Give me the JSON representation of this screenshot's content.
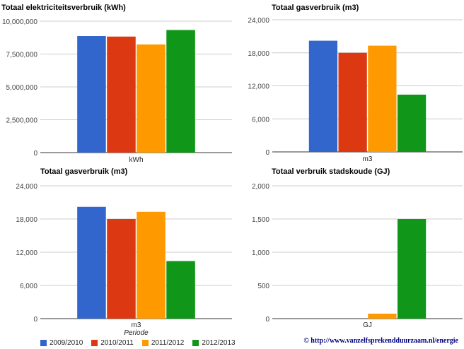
{
  "chart_data": [
    {
      "type": "bar",
      "title": "Totaal elektriciteitsverbruik (kWh)",
      "categories": [
        "kWh"
      ],
      "series": [
        {
          "name": "2009/2010",
          "values": [
            8870000
          ]
        },
        {
          "name": "2010/2011",
          "values": [
            8830000
          ]
        },
        {
          "name": "2011/2012",
          "values": [
            8230000
          ]
        },
        {
          "name": "2012/2013",
          "values": [
            9330000
          ]
        }
      ],
      "yticks": [
        "0",
        "2,500,000",
        "5,000,000",
        "7,500,000",
        "10,000,000"
      ],
      "ylim": [
        0,
        10000000
      ],
      "grid": true
    },
    {
      "type": "bar",
      "title": "Totaal gasverbruik (m3)",
      "categories": [
        "m3"
      ],
      "series": [
        {
          "name": "2009/2010",
          "values": [
            20200
          ]
        },
        {
          "name": "2010/2011",
          "values": [
            18000
          ]
        },
        {
          "name": "2011/2012",
          "values": [
            19300
          ]
        },
        {
          "name": "2012/2013",
          "values": [
            10400
          ]
        }
      ],
      "yticks": [
        "0",
        "6,000",
        "12,000",
        "18,000",
        "24,000"
      ],
      "ylim": [
        0,
        24000
      ],
      "grid": true
    },
    {
      "type": "bar",
      "title": "Totaal gasverbruik (m3)",
      "categories": [
        "m3"
      ],
      "xlabel": "Periode",
      "series": [
        {
          "name": "2009/2010",
          "values": [
            20200
          ]
        },
        {
          "name": "2010/2011",
          "values": [
            18000
          ]
        },
        {
          "name": "2011/2012",
          "values": [
            19300
          ]
        },
        {
          "name": "2012/2013",
          "values": [
            10400
          ]
        }
      ],
      "yticks": [
        "0",
        "6,000",
        "12,000",
        "18,000",
        "24,000"
      ],
      "ylim": [
        0,
        24000
      ],
      "grid": true
    },
    {
      "type": "bar",
      "title": "Totaal verbruik stadskoude (GJ)",
      "categories": [
        "GJ"
      ],
      "series": [
        {
          "name": "2009/2010",
          "values": [
            0
          ]
        },
        {
          "name": "2010/2011",
          "values": [
            0
          ]
        },
        {
          "name": "2011/2012",
          "values": [
            75
          ]
        },
        {
          "name": "2012/2013",
          "values": [
            1500
          ]
        }
      ],
      "yticks": [
        "0",
        "500",
        "1,000",
        "1,500",
        "2,000"
      ],
      "ylim": [
        0,
        2000
      ],
      "grid": true
    }
  ],
  "colors": [
    "#3366cc",
    "#dc3912",
    "#ff9900",
    "#109618"
  ],
  "legend": {
    "placement": "bottom-left",
    "items": [
      {
        "label": "2009/2010",
        "color": "#3366cc"
      },
      {
        "label": "2010/2011",
        "color": "#dc3912"
      },
      {
        "label": "2011/2012",
        "color": "#ff9900"
      },
      {
        "label": "2012/2013",
        "color": "#109618"
      }
    ]
  },
  "credit": "© http://www.vanzelfsprekendduurzaam.nl/energie"
}
